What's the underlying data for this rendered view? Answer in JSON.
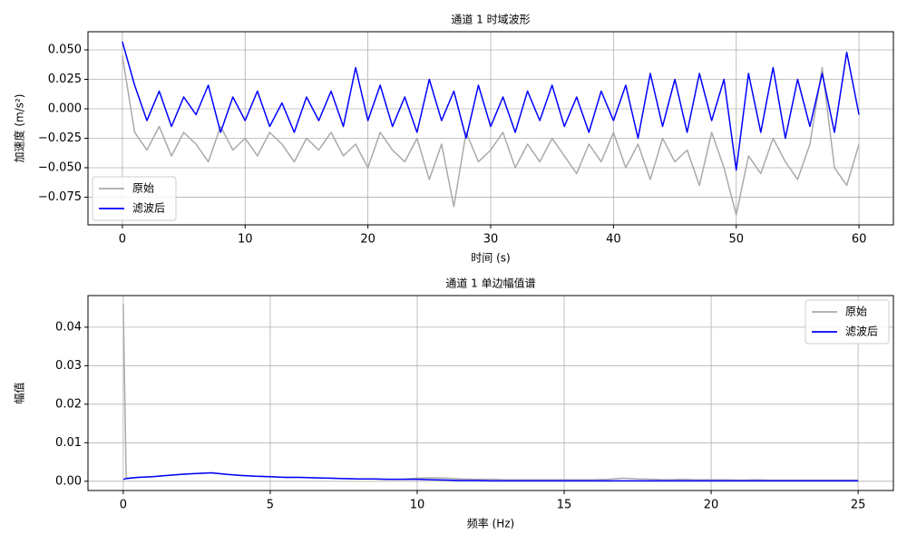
{
  "chart_data": [
    {
      "type": "line",
      "title": "通道 1 时域波形",
      "xlabel": "时间 (s)",
      "ylabel": "加速度 (m/s²)",
      "x": [
        0,
        1,
        2,
        3,
        4,
        5,
        6,
        7,
        8,
        9,
        10,
        11,
        12,
        13,
        14,
        15,
        16,
        17,
        18,
        19,
        20,
        21,
        22,
        23,
        24,
        25,
        26,
        27,
        28,
        29,
        30,
        31,
        32,
        33,
        34,
        35,
        36,
        37,
        38,
        39,
        40,
        41,
        42,
        43,
        44,
        45,
        46,
        47,
        48,
        49,
        50,
        51,
        52,
        53,
        54,
        55,
        56,
        57,
        58,
        59,
        60
      ],
      "series": [
        {
          "name": "原始",
          "color": "#aaaaaa",
          "values": [
            0.045,
            -0.02,
            -0.035,
            -0.015,
            -0.04,
            -0.02,
            -0.03,
            -0.045,
            -0.015,
            -0.035,
            -0.025,
            -0.04,
            -0.02,
            -0.03,
            -0.045,
            -0.025,
            -0.035,
            -0.02,
            -0.04,
            -0.03,
            -0.05,
            -0.02,
            -0.035,
            -0.045,
            -0.025,
            -0.06,
            -0.03,
            -0.083,
            -0.02,
            -0.045,
            -0.035,
            -0.02,
            -0.05,
            -0.03,
            -0.045,
            -0.025,
            -0.04,
            -0.055,
            -0.03,
            -0.045,
            -0.02,
            -0.05,
            -0.03,
            -0.06,
            -0.025,
            -0.045,
            -0.035,
            -0.065,
            -0.02,
            -0.05,
            -0.09,
            -0.04,
            -0.055,
            -0.025,
            -0.045,
            -0.06,
            -0.03,
            0.035,
            -0.05,
            -0.065,
            -0.03
          ]
        },
        {
          "name": "滤波后",
          "color": "#0000ff",
          "values": [
            0.057,
            0.02,
            -0.01,
            0.015,
            -0.015,
            0.01,
            -0.005,
            0.02,
            -0.02,
            0.01,
            -0.01,
            0.015,
            -0.015,
            0.005,
            -0.02,
            0.01,
            -0.01,
            0.015,
            -0.015,
            0.035,
            -0.01,
            0.02,
            -0.015,
            0.01,
            -0.02,
            0.025,
            -0.01,
            0.015,
            -0.025,
            0.02,
            -0.015,
            0.01,
            -0.02,
            0.015,
            -0.01,
            0.02,
            -0.015,
            0.01,
            -0.02,
            0.015,
            -0.01,
            0.02,
            -0.025,
            0.03,
            -0.015,
            0.025,
            -0.02,
            0.03,
            -0.01,
            0.025,
            -0.052,
            0.03,
            -0.02,
            0.035,
            -0.025,
            0.025,
            -0.015,
            0.03,
            -0.02,
            0.048,
            -0.005
          ]
        }
      ],
      "xlim": [
        -2.8,
        62.8
      ],
      "ylim": [
        -0.0985,
        0.0654
      ],
      "xticks": [
        0,
        10,
        20,
        30,
        40,
        50,
        60
      ],
      "yticks": [
        {
          "value": -0.075,
          "label": "−0.075"
        },
        {
          "value": -0.05,
          "label": "−0.050"
        },
        {
          "value": -0.025,
          "label": "−0.025"
        },
        {
          "value": 0,
          "label": "0.000"
        },
        {
          "value": 0.025,
          "label": "0.025"
        },
        {
          "value": 0.05,
          "label": "0.050"
        }
      ],
      "grid": true,
      "legend": "lower left"
    },
    {
      "type": "line",
      "title": "通道 1 单边幅值谱",
      "xlabel": "频率 (Hz)",
      "ylabel": "幅值",
      "x": [
        0,
        0.1,
        0.5,
        1,
        1.5,
        2,
        2.5,
        3,
        3.5,
        4,
        4.5,
        5,
        5.5,
        6,
        6.5,
        7,
        7.5,
        8,
        8.5,
        9,
        9.5,
        10,
        10.5,
        11,
        11.5,
        12,
        12.5,
        13,
        13.5,
        14,
        14.5,
        15,
        15.5,
        16,
        16.5,
        17,
        17.5,
        18,
        18.5,
        19,
        19.5,
        20,
        20.5,
        21,
        21.5,
        22,
        22.5,
        23,
        23.5,
        24,
        24.5,
        25
      ],
      "series": [
        {
          "name": "原始",
          "color": "#aaaaaa",
          "values": [
            0.046,
            0.0008,
            0.001,
            0.0012,
            0.0015,
            0.0018,
            0.002,
            0.0022,
            0.0018,
            0.0015,
            0.0013,
            0.0012,
            0.001,
            0.001,
            0.0009,
            0.0008,
            0.0007,
            0.0006,
            0.0006,
            0.0005,
            0.0005,
            0.0008,
            0.0009,
            0.0008,
            0.0006,
            0.0005,
            0.0005,
            0.0004,
            0.0004,
            0.0004,
            0.0004,
            0.0004,
            0.0004,
            0.0004,
            0.0005,
            0.0008,
            0.0006,
            0.0005,
            0.0004,
            0.0005,
            0.0004,
            0.0004,
            0.0004,
            0.0003,
            0.0004,
            0.0003,
            0.0003,
            0.0003,
            0.0003,
            0.0003,
            0.0003,
            0.0003
          ]
        },
        {
          "name": "滤波后",
          "color": "#0000ff",
          "values": [
            0.0005,
            0.0007,
            0.001,
            0.0012,
            0.0015,
            0.0018,
            0.002,
            0.0022,
            0.0018,
            0.0015,
            0.0013,
            0.0012,
            0.001,
            0.001,
            0.0009,
            0.0008,
            0.0007,
            0.0006,
            0.0006,
            0.0005,
            0.0005,
            0.0005,
            0.0004,
            0.0003,
            0.0002,
            0.0002,
            0.0001,
            0.0001,
            0.0001,
            0.0001,
            0.0001,
            0.0001,
            0.0001,
            0.0001,
            0.0001,
            0.0001,
            0.0001,
            0.0001,
            0.0001,
            0.0001,
            0.0001,
            0.0001,
            0.0001,
            0.0001,
            0.0001,
            0.0001,
            0.0001,
            0.0001,
            0.0001,
            0.0001,
            0.0001,
            0.0001
          ]
        }
      ],
      "xlim": [
        -1.2,
        26.2
      ],
      "ylim": [
        -0.0024,
        0.0482
      ],
      "xticks": [
        0,
        5,
        10,
        15,
        20,
        25
      ],
      "yticks": [
        {
          "value": 0,
          "label": "0.00"
        },
        {
          "value": 0.01,
          "label": "0.01"
        },
        {
          "value": 0.02,
          "label": "0.02"
        },
        {
          "value": 0.03,
          "label": "0.03"
        },
        {
          "value": 0.04,
          "label": "0.04"
        }
      ],
      "grid": true,
      "legend": "upper right"
    }
  ]
}
